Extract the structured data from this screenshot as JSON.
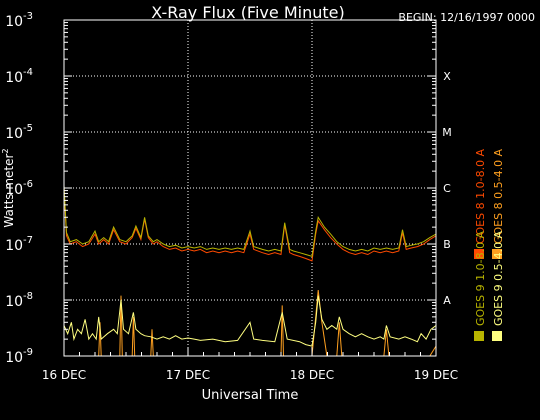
{
  "chart_data": {
    "type": "line",
    "title": "X-Ray Flux (Five Minute)",
    "begin_label": "BEGIN: 12/16/1997 0000",
    "ylabel": "Watts meter",
    "ylabel_suffix": "2",
    "xlabel": "Universal Time",
    "y_scale": "log",
    "ylim": [
      1e-09,
      0.001
    ],
    "y_ticks": [
      {
        "mantissa": "10",
        "exp": "-9",
        "value": 1e-09
      },
      {
        "mantissa": "10",
        "exp": "-8",
        "value": 1e-08
      },
      {
        "mantissa": "10",
        "exp": "-7",
        "value": 1e-07
      },
      {
        "mantissa": "10",
        "exp": "-6",
        "value": 1e-06
      },
      {
        "mantissa": "10",
        "exp": "-5",
        "value": 1e-05
      },
      {
        "mantissa": "10",
        "exp": "-4",
        "value": 0.0001
      },
      {
        "mantissa": "10",
        "exp": "-3",
        "value": 0.001
      }
    ],
    "x_ticks": [
      {
        "label": "16 DEC",
        "day": 0
      },
      {
        "label": "17 DEC",
        "day": 1
      },
      {
        "label": "18 DEC",
        "day": 2
      },
      {
        "label": "19 DEC",
        "day": 3
      }
    ],
    "xlim_days": [
      0,
      3
    ],
    "flare_classes": [
      {
        "label": "X",
        "value": 0.0001
      },
      {
        "label": "M",
        "value": 1e-05
      },
      {
        "label": "C",
        "value": 1e-06
      },
      {
        "label": "B",
        "value": 1e-07
      },
      {
        "label": "A",
        "value": 1e-08
      }
    ],
    "grid": true,
    "legend_position": "right-vertical",
    "series": [
      {
        "name": "GOES 8 1.0-8.0 A",
        "color": "#ff4a00",
        "band": "long",
        "points": [
          [
            0.0,
            1e-06
          ],
          [
            0.02,
            1.4e-07
          ],
          [
            0.05,
            1e-07
          ],
          [
            0.1,
            1.1e-07
          ],
          [
            0.15,
            9e-08
          ],
          [
            0.2,
            1e-07
          ],
          [
            0.25,
            1.5e-07
          ],
          [
            0.28,
            1e-07
          ],
          [
            0.32,
            1.2e-07
          ],
          [
            0.36,
            1e-07
          ],
          [
            0.4,
            1.8e-07
          ],
          [
            0.45,
            1.1e-07
          ],
          [
            0.5,
            1e-07
          ],
          [
            0.55,
            1.3e-07
          ],
          [
            0.58,
            1.9e-07
          ],
          [
            0.62,
            1.2e-07
          ],
          [
            0.65,
            2.8e-07
          ],
          [
            0.68,
            1.3e-07
          ],
          [
            0.72,
            1e-07
          ],
          [
            0.75,
            1.1e-07
          ],
          [
            0.8,
            9e-08
          ],
          [
            0.85,
            8e-08
          ],
          [
            0.9,
            8.5e-08
          ],
          [
            0.95,
            7.5e-08
          ],
          [
            1.0,
            8e-08
          ],
          [
            1.05,
            7.5e-08
          ],
          [
            1.1,
            8e-08
          ],
          [
            1.15,
            7e-08
          ],
          [
            1.2,
            7.5e-08
          ],
          [
            1.25,
            7e-08
          ],
          [
            1.3,
            7.5e-08
          ],
          [
            1.35,
            7e-08
          ],
          [
            1.4,
            7.5e-08
          ],
          [
            1.45,
            7e-08
          ],
          [
            1.5,
            1.5e-07
          ],
          [
            1.53,
            8e-08
          ],
          [
            1.6,
            7e-08
          ],
          [
            1.65,
            6.5e-08
          ],
          [
            1.7,
            7e-08
          ],
          [
            1.75,
            6.5e-08
          ],
          [
            1.78,
            2.2e-07
          ],
          [
            1.82,
            7e-08
          ],
          [
            1.85,
            6.5e-08
          ],
          [
            1.9,
            6e-08
          ],
          [
            1.95,
            5.5e-08
          ],
          [
            2.0,
            5e-08
          ],
          [
            2.03,
            1.5e-07
          ],
          [
            2.05,
            2.6e-07
          ],
          [
            2.1,
            1.8e-07
          ],
          [
            2.15,
            1.3e-07
          ],
          [
            2.2,
            1e-07
          ],
          [
            2.25,
            8e-08
          ],
          [
            2.3,
            7e-08
          ],
          [
            2.35,
            6.5e-08
          ],
          [
            2.4,
            7e-08
          ],
          [
            2.45,
            6.5e-08
          ],
          [
            2.5,
            7.5e-08
          ],
          [
            2.55,
            7e-08
          ],
          [
            2.6,
            7.5e-08
          ],
          [
            2.65,
            7e-08
          ],
          [
            2.7,
            7.5e-08
          ],
          [
            2.73,
            1.6e-07
          ],
          [
            2.76,
            8e-08
          ],
          [
            2.8,
            8.5e-08
          ],
          [
            2.85,
            9e-08
          ],
          [
            2.9,
            1e-07
          ],
          [
            2.95,
            1.2e-07
          ],
          [
            3.0,
            1.4e-07
          ]
        ]
      },
      {
        "name": "GOES 9 1.0-8.0 A",
        "color": "#b8b400",
        "band": "long",
        "points": [
          [
            0.0,
            1.1e-06
          ],
          [
            0.02,
            1.6e-07
          ],
          [
            0.05,
            1.1e-07
          ],
          [
            0.1,
            1.2e-07
          ],
          [
            0.15,
            1e-07
          ],
          [
            0.2,
            1.1e-07
          ],
          [
            0.25,
            1.7e-07
          ],
          [
            0.28,
            1.1e-07
          ],
          [
            0.32,
            1.3e-07
          ],
          [
            0.36,
            1.1e-07
          ],
          [
            0.4,
            2e-07
          ],
          [
            0.45,
            1.2e-07
          ],
          [
            0.5,
            1.1e-07
          ],
          [
            0.55,
            1.4e-07
          ],
          [
            0.58,
            2.1e-07
          ],
          [
            0.62,
            1.3e-07
          ],
          [
            0.65,
            3e-07
          ],
          [
            0.68,
            1.4e-07
          ],
          [
            0.72,
            1.1e-07
          ],
          [
            0.75,
            1.2e-07
          ],
          [
            0.8,
            1e-07
          ],
          [
            0.85,
            9e-08
          ],
          [
            0.9,
            9.5e-08
          ],
          [
            0.95,
            8.5e-08
          ],
          [
            1.0,
            9e-08
          ],
          [
            1.05,
            8.5e-08
          ],
          [
            1.1,
            9e-08
          ],
          [
            1.15,
            8e-08
          ],
          [
            1.2,
            8.5e-08
          ],
          [
            1.25,
            8e-08
          ],
          [
            1.3,
            8.5e-08
          ],
          [
            1.35,
            8e-08
          ],
          [
            1.4,
            8.5e-08
          ],
          [
            1.45,
            8e-08
          ],
          [
            1.5,
            1.7e-07
          ],
          [
            1.53,
            9e-08
          ],
          [
            1.6,
            8e-08
          ],
          [
            1.65,
            7.5e-08
          ],
          [
            1.7,
            8e-08
          ],
          [
            1.75,
            7.5e-08
          ],
          [
            1.78,
            2.4e-07
          ],
          [
            1.82,
            8e-08
          ],
          [
            1.85,
            7.5e-08
          ],
          [
            1.9,
            7e-08
          ],
          [
            1.95,
            6.5e-08
          ],
          [
            2.0,
            6e-08
          ],
          [
            2.03,
            1.7e-07
          ],
          [
            2.05,
            3e-07
          ],
          [
            2.1,
            2e-07
          ],
          [
            2.15,
            1.5e-07
          ],
          [
            2.2,
            1.1e-07
          ],
          [
            2.25,
            9e-08
          ],
          [
            2.3,
            8e-08
          ],
          [
            2.35,
            7.5e-08
          ],
          [
            2.4,
            8e-08
          ],
          [
            2.45,
            7.5e-08
          ],
          [
            2.5,
            8.5e-08
          ],
          [
            2.55,
            8e-08
          ],
          [
            2.6,
            8.5e-08
          ],
          [
            2.65,
            8e-08
          ],
          [
            2.7,
            8.5e-08
          ],
          [
            2.73,
            1.8e-07
          ],
          [
            2.76,
            9e-08
          ],
          [
            2.8,
            9.5e-08
          ],
          [
            2.85,
            1e-07
          ],
          [
            2.9,
            1.1e-07
          ],
          [
            2.95,
            1.3e-07
          ],
          [
            3.0,
            1.5e-07
          ]
        ]
      },
      {
        "name": "GOES 8 0.5-4.0 A",
        "color": "#ffa020",
        "band": "short",
        "points": [
          [
            0.0,
            1e-09
          ],
          [
            0.28,
            1e-09
          ],
          [
            0.29,
            4e-09
          ],
          [
            0.3,
            1e-09
          ],
          [
            0.45,
            1e-09
          ],
          [
            0.46,
            1.2e-08
          ],
          [
            0.47,
            1e-09
          ],
          [
            0.55,
            1e-09
          ],
          [
            0.56,
            5e-09
          ],
          [
            0.57,
            1e-09
          ],
          [
            0.7,
            1e-09
          ],
          [
            0.71,
            3e-09
          ],
          [
            0.72,
            1e-09
          ],
          [
            1.75,
            1e-09
          ],
          [
            1.76,
            8e-09
          ],
          [
            1.77,
            1e-09
          ],
          [
            2.0,
            1e-09
          ],
          [
            2.03,
            5e-09
          ],
          [
            2.05,
            1.5e-08
          ],
          [
            2.08,
            4e-09
          ],
          [
            2.12,
            1e-09
          ],
          [
            2.2,
            1e-09
          ],
          [
            2.22,
            4e-09
          ],
          [
            2.24,
            1e-09
          ],
          [
            2.58,
            1e-09
          ],
          [
            2.6,
            3e-09
          ],
          [
            2.62,
            1e-09
          ],
          [
            2.95,
            1e-09
          ],
          [
            3.0,
            1.5e-09
          ]
        ]
      },
      {
        "name": "GOES 9 0.5-4.0 A",
        "color": "#ffff80",
        "band": "short",
        "points": [
          [
            0.0,
            3.5e-09
          ],
          [
            0.03,
            2.5e-09
          ],
          [
            0.06,
            4e-09
          ],
          [
            0.08,
            2e-09
          ],
          [
            0.11,
            3e-09
          ],
          [
            0.14,
            2.5e-09
          ],
          [
            0.17,
            4.5e-09
          ],
          [
            0.2,
            2e-09
          ],
          [
            0.23,
            2.5e-09
          ],
          [
            0.26,
            2e-09
          ],
          [
            0.28,
            5e-09
          ],
          [
            0.3,
            2e-09
          ],
          [
            0.35,
            2.5e-09
          ],
          [
            0.4,
            3e-09
          ],
          [
            0.43,
            2.5e-09
          ],
          [
            0.46,
            1e-08
          ],
          [
            0.48,
            3e-09
          ],
          [
            0.52,
            2.5e-09
          ],
          [
            0.56,
            6e-09
          ],
          [
            0.58,
            3e-09
          ],
          [
            0.62,
            2.5e-09
          ],
          [
            0.65,
            2.3e-09
          ],
          [
            0.7,
            2.2e-09
          ],
          [
            0.75,
            2e-09
          ],
          [
            0.8,
            2.2e-09
          ],
          [
            0.85,
            2e-09
          ],
          [
            0.9,
            2.3e-09
          ],
          [
            0.95,
            2e-09
          ],
          [
            1.0,
            2.1e-09
          ],
          [
            1.05,
            2e-09
          ],
          [
            1.1,
            1.9e-09
          ],
          [
            1.2,
            2e-09
          ],
          [
            1.3,
            1.8e-09
          ],
          [
            1.4,
            1.9e-09
          ],
          [
            1.5,
            4e-09
          ],
          [
            1.53,
            2e-09
          ],
          [
            1.6,
            1.9e-09
          ],
          [
            1.7,
            1.8e-09
          ],
          [
            1.76,
            6e-09
          ],
          [
            1.8,
            2e-09
          ],
          [
            1.9,
            1.8e-09
          ],
          [
            1.95,
            1.6e-09
          ],
          [
            2.0,
            1.5e-09
          ],
          [
            2.03,
            4e-09
          ],
          [
            2.05,
            1.2e-08
          ],
          [
            2.08,
            4.5e-09
          ],
          [
            2.12,
            3e-09
          ],
          [
            2.16,
            3.5e-09
          ],
          [
            2.2,
            3e-09
          ],
          [
            2.22,
            5e-09
          ],
          [
            2.25,
            3e-09
          ],
          [
            2.3,
            2.5e-09
          ],
          [
            2.35,
            2.2e-09
          ],
          [
            2.4,
            2.5e-09
          ],
          [
            2.45,
            2.2e-09
          ],
          [
            2.5,
            2e-09
          ],
          [
            2.55,
            2.2e-09
          ],
          [
            2.58,
            2e-09
          ],
          [
            2.6,
            3.5e-09
          ],
          [
            2.63,
            2.2e-09
          ],
          [
            2.7,
            2e-09
          ],
          [
            2.75,
            2.2e-09
          ],
          [
            2.8,
            2e-09
          ],
          [
            2.85,
            1.8e-09
          ],
          [
            2.88,
            2.5e-09
          ],
          [
            2.92,
            2e-09
          ],
          [
            2.96,
            3e-09
          ],
          [
            3.0,
            3.5e-09
          ]
        ]
      }
    ]
  }
}
